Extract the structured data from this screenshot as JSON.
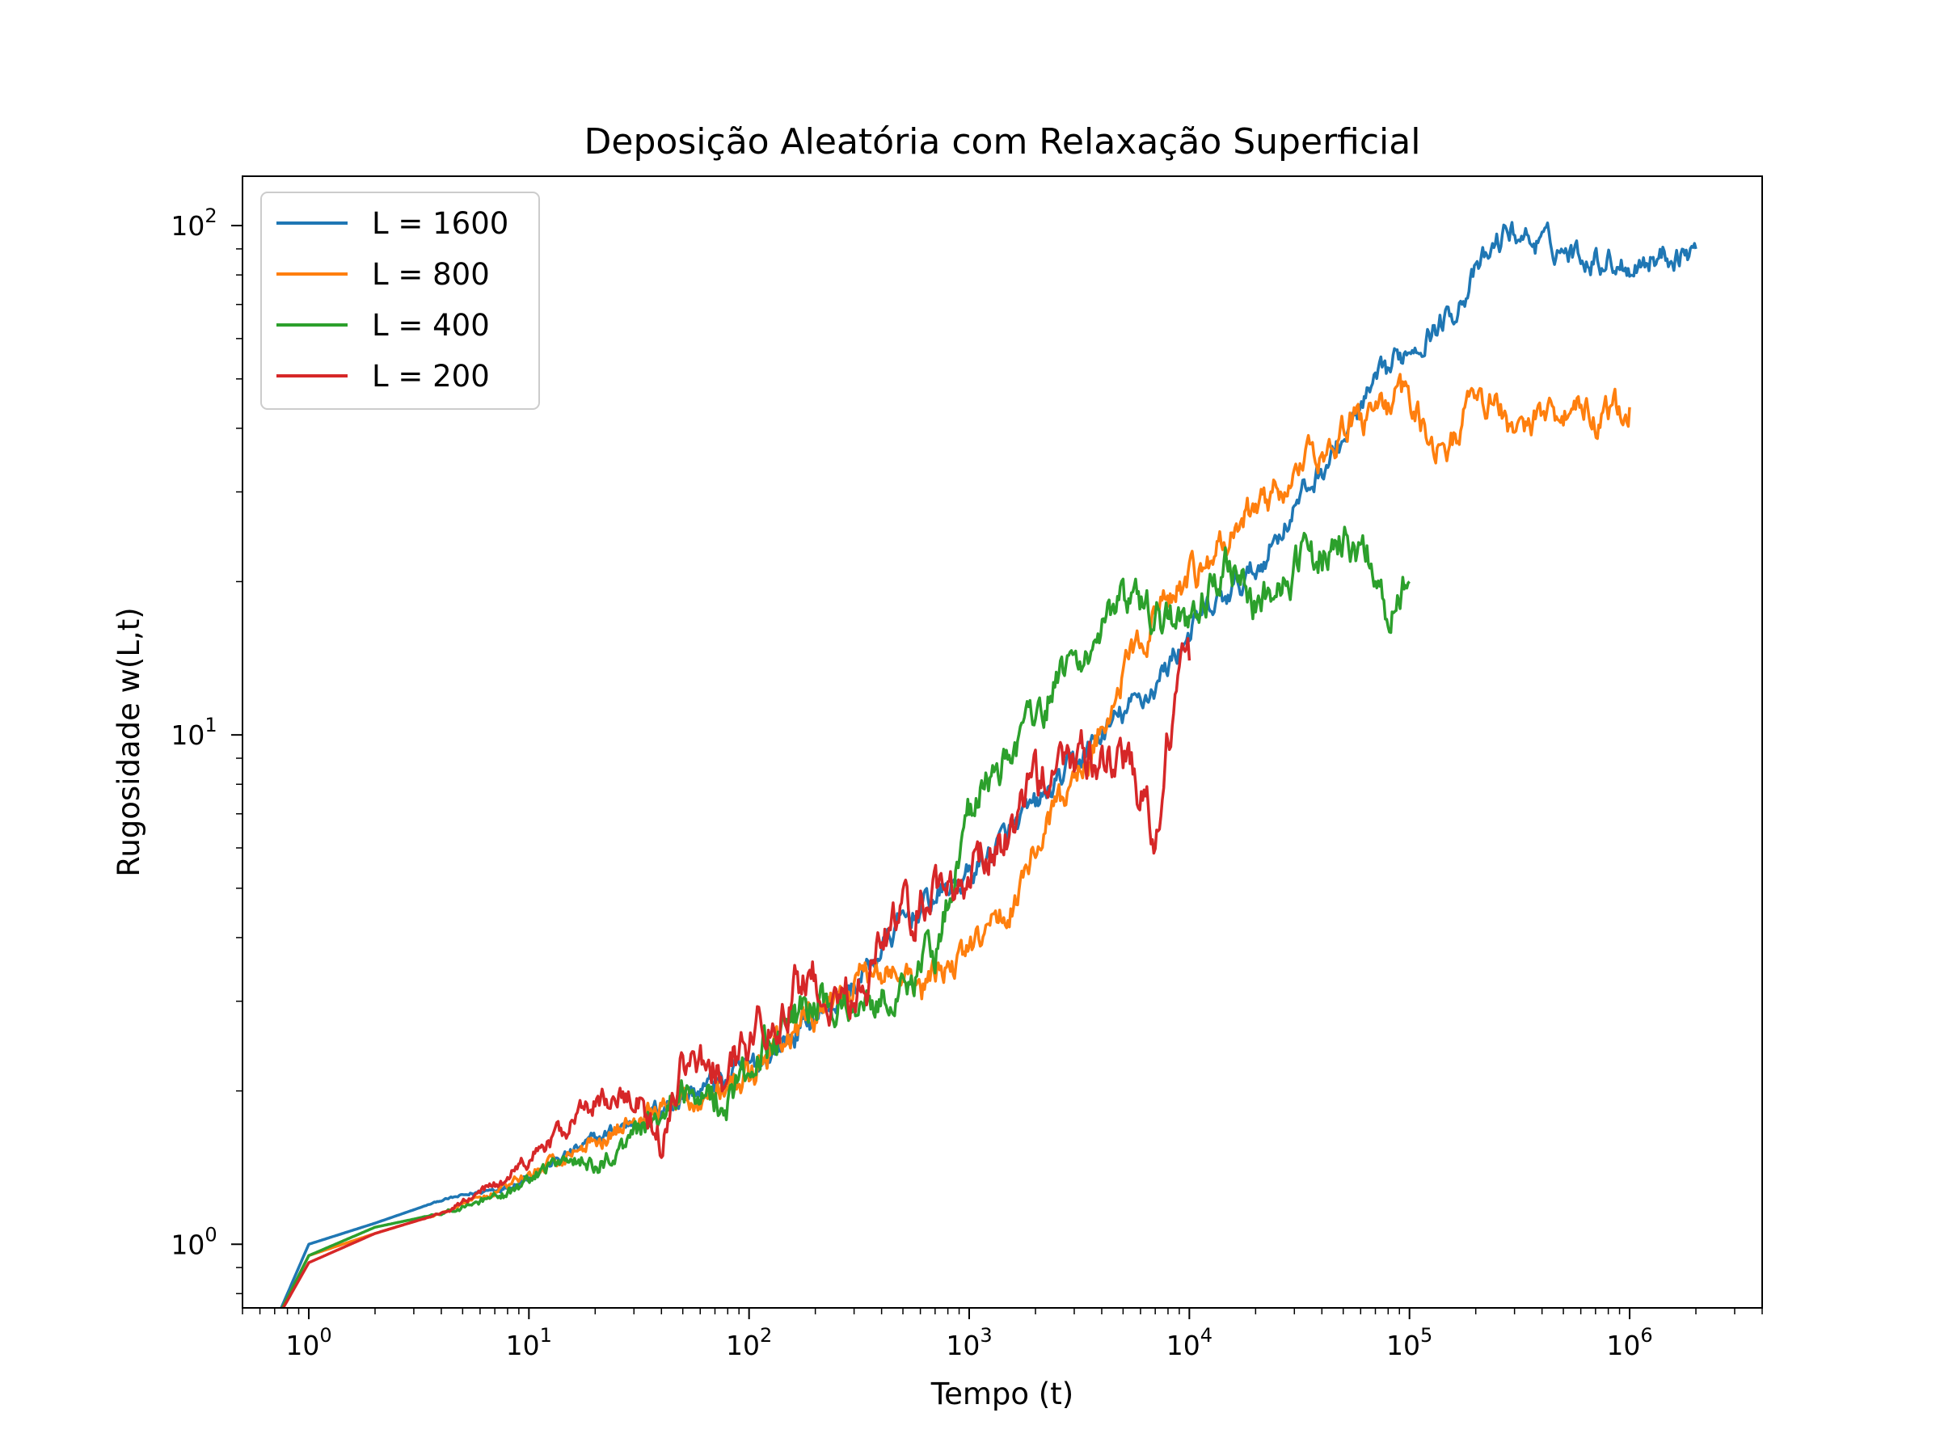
{
  "chart_data": {
    "type": "line",
    "title": "Deposição Aleatória com Relaxação Superficial",
    "xlabel": "Tempo (t)",
    "ylabel": "Rugosidade w(L,t)",
    "xscale": "log",
    "yscale": "log",
    "xlim": [
      0.5,
      4000000
    ],
    "ylim": [
      0.75,
      125
    ],
    "x_ticks": [
      {
        "value": 1,
        "base": "10",
        "exp": "0"
      },
      {
        "value": 10,
        "base": "10",
        "exp": "1"
      },
      {
        "value": 100,
        "base": "10",
        "exp": "2"
      },
      {
        "value": 1000,
        "base": "10",
        "exp": "3"
      },
      {
        "value": 10000,
        "base": "10",
        "exp": "4"
      },
      {
        "value": 100000,
        "base": "10",
        "exp": "5"
      },
      {
        "value": 1000000,
        "base": "10",
        "exp": "6"
      }
    ],
    "y_ticks": [
      {
        "value": 1,
        "base": "10",
        "exp": "0"
      },
      {
        "value": 10,
        "base": "10",
        "exp": "1"
      },
      {
        "value": 100,
        "base": "10",
        "exp": "2"
      }
    ],
    "grid": false,
    "legend_position": "top-left",
    "series": [
      {
        "name": "L = 1600",
        "color": "#1f77b4",
        "points": [
          [
            0.7,
            0.7
          ],
          [
            1,
            1
          ],
          [
            2,
            1.1
          ],
          [
            4,
            1.22
          ],
          [
            8,
            1.3
          ],
          [
            15,
            1.5
          ],
          [
            30,
            1.75
          ],
          [
            50,
            1.95
          ],
          [
            100,
            2.2
          ],
          [
            200,
            2.8
          ],
          [
            300,
            3.2
          ],
          [
            500,
            4.3
          ],
          [
            700,
            4.8
          ],
          [
            1000,
            5.3
          ],
          [
            2000,
            7.2
          ],
          [
            4000,
            10
          ],
          [
            7000,
            12.5
          ],
          [
            10000,
            16
          ],
          [
            20000,
            21
          ],
          [
            30000,
            28
          ],
          [
            50000,
            38
          ],
          [
            70000,
            48
          ],
          [
            100000,
            58
          ],
          [
            150000,
            66
          ],
          [
            200000,
            80
          ],
          [
            280000,
            98
          ],
          [
            400000,
            92
          ],
          [
            600000,
            88
          ],
          [
            1000000,
            84
          ],
          [
            1500000,
            88
          ],
          [
            2000000,
            90
          ]
        ],
        "noise": 0.04
      },
      {
        "name": "L = 800",
        "color": "#ff7f0e",
        "points": [
          [
            0.7,
            0.7
          ],
          [
            1,
            0.95
          ],
          [
            2,
            1.05
          ],
          [
            4,
            1.15
          ],
          [
            8,
            1.3
          ],
          [
            15,
            1.5
          ],
          [
            30,
            1.75
          ],
          [
            50,
            1.9
          ],
          [
            100,
            2.1
          ],
          [
            200,
            2.8
          ],
          [
            300,
            3.2
          ],
          [
            400,
            3.5
          ],
          [
            600,
            3.1
          ],
          [
            800,
            3.5
          ],
          [
            1000,
            3.7
          ],
          [
            1500,
            4.5
          ],
          [
            2000,
            6
          ],
          [
            3000,
            8
          ],
          [
            5000,
            13
          ],
          [
            7000,
            17
          ],
          [
            10000,
            20
          ],
          [
            15000,
            24
          ],
          [
            20000,
            28
          ],
          [
            30000,
            32
          ],
          [
            50000,
            40
          ],
          [
            80000,
            44
          ],
          [
            100000,
            46
          ],
          [
            150000,
            35
          ],
          [
            200000,
            48
          ],
          [
            300000,
            40
          ],
          [
            500000,
            44
          ],
          [
            800000,
            42
          ],
          [
            1000000,
            44
          ]
        ],
        "noise": 0.05
      },
      {
        "name": "L = 400",
        "color": "#2ca02c",
        "points": [
          [
            0.7,
            0.7
          ],
          [
            1,
            0.95
          ],
          [
            2,
            1.08
          ],
          [
            4,
            1.15
          ],
          [
            8,
            1.25
          ],
          [
            15,
            1.5
          ],
          [
            20,
            1.4
          ],
          [
            30,
            1.65
          ],
          [
            50,
            2.0
          ],
          [
            80,
            1.95
          ],
          [
            100,
            2.2
          ],
          [
            150,
            2.8
          ],
          [
            200,
            2.9
          ],
          [
            300,
            3.0
          ],
          [
            500,
            3.2
          ],
          [
            700,
            3.8
          ],
          [
            1000,
            7
          ],
          [
            2000,
            11
          ],
          [
            3000,
            14
          ],
          [
            5000,
            18
          ],
          [
            7000,
            17
          ],
          [
            10000,
            16
          ],
          [
            15000,
            22
          ],
          [
            20000,
            18
          ],
          [
            30000,
            21
          ],
          [
            50000,
            24
          ],
          [
            70000,
            22
          ],
          [
            80000,
            17
          ],
          [
            100000,
            20
          ]
        ],
        "noise": 0.06
      },
      {
        "name": "L = 200",
        "color": "#d62728",
        "points": [
          [
            0.7,
            0.7
          ],
          [
            1,
            0.92
          ],
          [
            2,
            1.05
          ],
          [
            4,
            1.15
          ],
          [
            8,
            1.35
          ],
          [
            15,
            1.7
          ],
          [
            20,
            1.9
          ],
          [
            30,
            1.95
          ],
          [
            40,
            1.6
          ],
          [
            50,
            2.3
          ],
          [
            80,
            2.2
          ],
          [
            100,
            2.5
          ],
          [
            150,
            3.1
          ],
          [
            200,
            3.3
          ],
          [
            300,
            3.0
          ],
          [
            500,
            4.5
          ],
          [
            800,
            5.2
          ],
          [
            1000,
            5.5
          ],
          [
            1500,
            6.5
          ],
          [
            2000,
            8
          ],
          [
            3000,
            9
          ],
          [
            5000,
            9
          ],
          [
            7000,
            6.5
          ],
          [
            8000,
            10
          ],
          [
            9000,
            13
          ],
          [
            10000,
            14
          ]
        ],
        "noise": 0.07
      }
    ]
  }
}
